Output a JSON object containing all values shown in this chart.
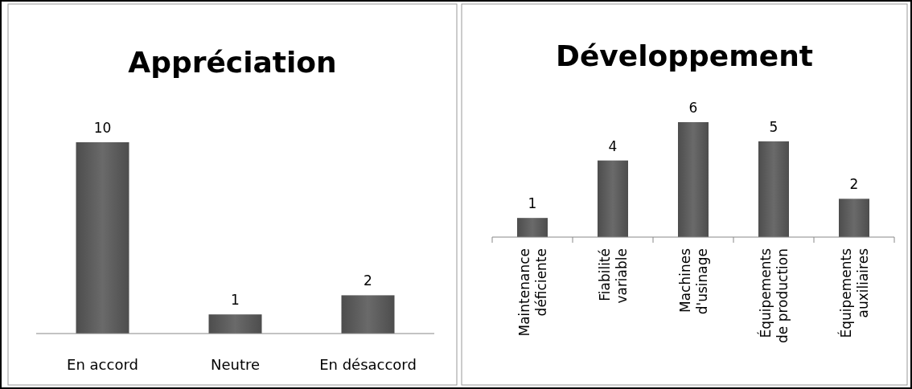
{
  "chart_data": [
    {
      "type": "bar",
      "title": "Appréciation",
      "categories": [
        "En accord",
        "Neutre",
        "En désaccord"
      ],
      "values": [
        10,
        1,
        2
      ],
      "color": "#5f5f5f",
      "ylim": [
        0,
        10
      ],
      "data_labels": true
    },
    {
      "type": "bar",
      "title": "Développement",
      "categories": [
        "Maintenance\ndéficiente",
        "Fiabilité\nvariable",
        "Machines\nd'usinage",
        "Équipements\nde production",
        "Équipements\nauxiliaires"
      ],
      "values": [
        1,
        4,
        6,
        5,
        2
      ],
      "color": "#5f5f5f",
      "ylim": [
        0,
        6
      ],
      "data_labels": true
    }
  ]
}
